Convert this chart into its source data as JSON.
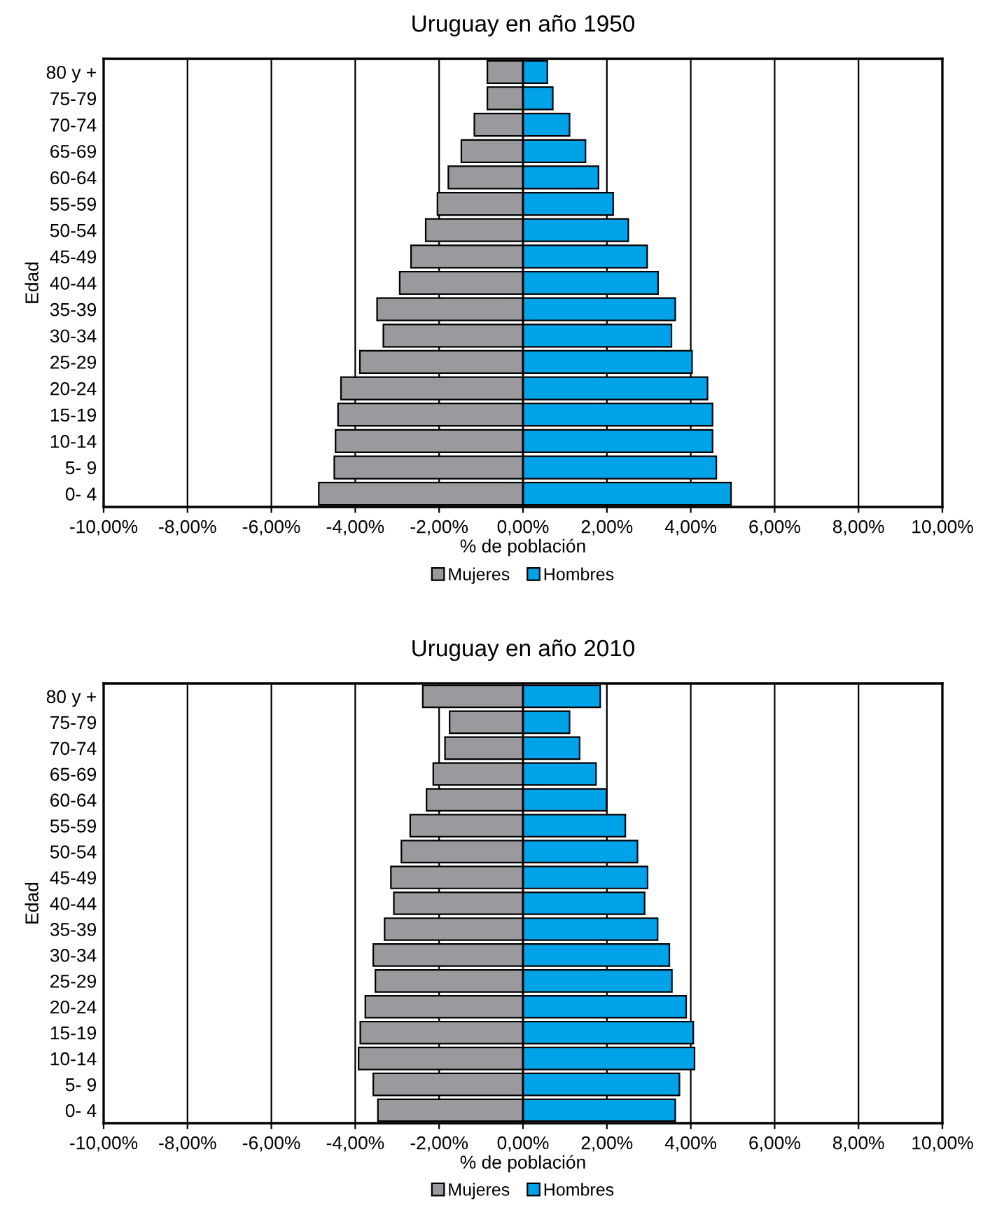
{
  "chart_data": [
    {
      "type": "bar",
      "orientation": "horizontal",
      "stacked": true,
      "title": "Uruguay en año 1950",
      "xlabel": "% de población",
      "ylabel": "Edad",
      "categories": [
        "80 y +",
        "75-79",
        "70-74",
        "65-69",
        "60-64",
        "55-59",
        "50-54",
        "45-49",
        "40-44",
        "35-39",
        "30-34",
        "25-29",
        "20-24",
        "15-19",
        "10-14",
        "5- 9",
        "0- 4"
      ],
      "series": [
        {
          "name": "Mujeres",
          "color": "#9a999e",
          "values": [
            -0.85,
            -0.85,
            -1.16,
            -1.47,
            -1.78,
            -2.04,
            -2.32,
            -2.67,
            -2.94,
            -3.48,
            -3.33,
            -3.89,
            -4.34,
            -4.41,
            -4.47,
            -4.5,
            -4.87
          ]
        },
        {
          "name": "Hombres",
          "color": "#00a3e8",
          "values": [
            0.58,
            0.71,
            1.11,
            1.49,
            1.8,
            2.15,
            2.51,
            2.96,
            3.22,
            3.63,
            3.54,
            4.03,
            4.4,
            4.52,
            4.52,
            4.61,
            4.96
          ]
        }
      ],
      "xlim": [
        -10,
        10
      ],
      "xticks": [
        {
          "value": -10,
          "label": "-10,00%"
        },
        {
          "value": -8,
          "label": "-8,00%"
        },
        {
          "value": -6,
          "label": "-6,00%"
        },
        {
          "value": -4,
          "label": "-4,00%"
        },
        {
          "value": -2,
          "label": "-2,00%"
        },
        {
          "value": 0,
          "label": "0,00%"
        },
        {
          "value": 2,
          "label": "2,00%"
        },
        {
          "value": 4,
          "label": "4,00%"
        },
        {
          "value": 6,
          "label": "6,00%"
        },
        {
          "value": 8,
          "label": "8,00%"
        },
        {
          "value": 10,
          "label": "10,00%"
        }
      ],
      "grid": "x",
      "legend": "bottom"
    },
    {
      "type": "bar",
      "orientation": "horizontal",
      "stacked": true,
      "title": "Uruguay en año 2010",
      "xlabel": "% de población",
      "ylabel": "Edad",
      "categories": [
        "80 y +",
        "75-79",
        "70-74",
        "65-69",
        "60-64",
        "55-59",
        "50-54",
        "45-49",
        "40-44",
        "35-39",
        "30-34",
        "25-29",
        "20-24",
        "15-19",
        "10-14",
        "5- 9",
        "0- 4"
      ],
      "series": [
        {
          "name": "Mujeres",
          "color": "#9a999e",
          "values": [
            -2.39,
            -1.75,
            -1.86,
            -2.14,
            -2.3,
            -2.69,
            -2.9,
            -3.15,
            -3.08,
            -3.3,
            -3.57,
            -3.52,
            -3.76,
            -3.88,
            -3.92,
            -3.57,
            -3.46
          ]
        },
        {
          "name": "Hombres",
          "color": "#00a3e8",
          "values": [
            1.84,
            1.11,
            1.35,
            1.74,
            1.99,
            2.44,
            2.73,
            2.97,
            2.9,
            3.21,
            3.49,
            3.55,
            3.89,
            4.06,
            4.09,
            3.73,
            3.63
          ]
        }
      ],
      "xlim": [
        -10,
        10
      ],
      "xticks": [
        {
          "value": -10,
          "label": "-10,00%"
        },
        {
          "value": -8,
          "label": "-8,00%"
        },
        {
          "value": -6,
          "label": "-6,00%"
        },
        {
          "value": -4,
          "label": "-4,00%"
        },
        {
          "value": -2,
          "label": "-2,00%"
        },
        {
          "value": 0,
          "label": "0,00%"
        },
        {
          "value": 2,
          "label": "2,00%"
        },
        {
          "value": 4,
          "label": "4,00%"
        },
        {
          "value": 6,
          "label": "6,00%"
        },
        {
          "value": 8,
          "label": "8,00%"
        },
        {
          "value": 10,
          "label": "10,00%"
        }
      ],
      "grid": "x",
      "legend": "bottom"
    }
  ]
}
